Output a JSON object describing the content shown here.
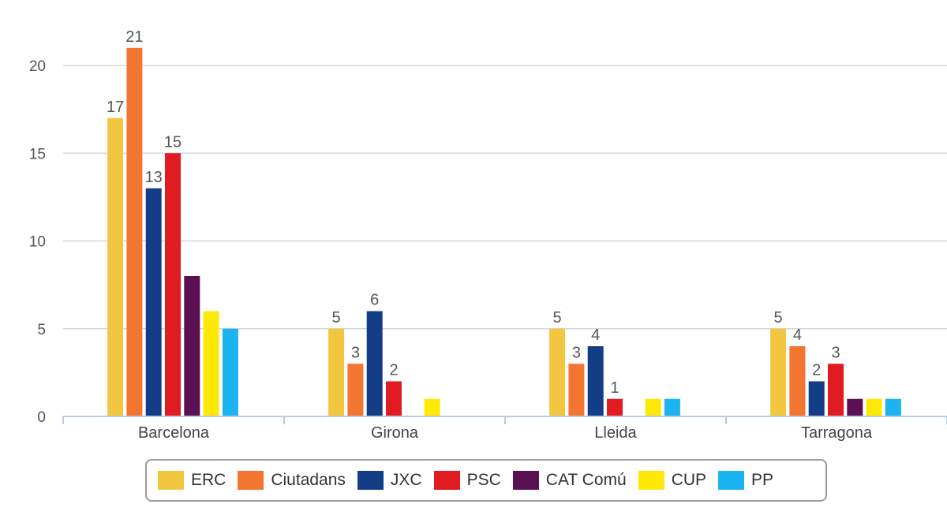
{
  "chart_data": {
    "type": "bar",
    "title": "",
    "xlabel": "",
    "ylabel": "",
    "ylim": [
      0,
      22
    ],
    "yticks": [
      0,
      5,
      10,
      15,
      20
    ],
    "grid": true,
    "legend_position": "bottom",
    "categories": [
      "Barcelona",
      "Girona",
      "Lleida",
      "Tarragona"
    ],
    "series": [
      {
        "name": "ERC",
        "color": "#f2c73f",
        "values": [
          17,
          5,
          5,
          5
        ],
        "labels": [
          "17",
          "5",
          "5",
          "5"
        ]
      },
      {
        "name": "Ciutadans",
        "color": "#f47530",
        "values": [
          21,
          3,
          3,
          4
        ],
        "labels": [
          "21",
          "3",
          "3",
          "4"
        ]
      },
      {
        "name": "JXC",
        "color": "#133d86",
        "values": [
          13,
          6,
          4,
          2
        ],
        "labels": [
          "13",
          "6",
          "4",
          "2"
        ]
      },
      {
        "name": "PSC",
        "color": "#e01b22",
        "values": [
          15,
          2,
          1,
          3
        ],
        "labels": [
          "15",
          "2",
          "1",
          "3"
        ]
      },
      {
        "name": "CAT Comú",
        "color": "#5a1052",
        "values": [
          8,
          0,
          0,
          1
        ],
        "labels": [
          "",
          "",
          "",
          ""
        ]
      },
      {
        "name": "CUP",
        "color": "#fde905",
        "values": [
          6,
          1,
          1,
          1
        ],
        "labels": [
          "",
          "",
          "",
          ""
        ]
      },
      {
        "name": "PP",
        "color": "#1bb3f0",
        "values": [
          5,
          0,
          1,
          1
        ],
        "labels": [
          "",
          "",
          "",
          ""
        ]
      }
    ]
  }
}
